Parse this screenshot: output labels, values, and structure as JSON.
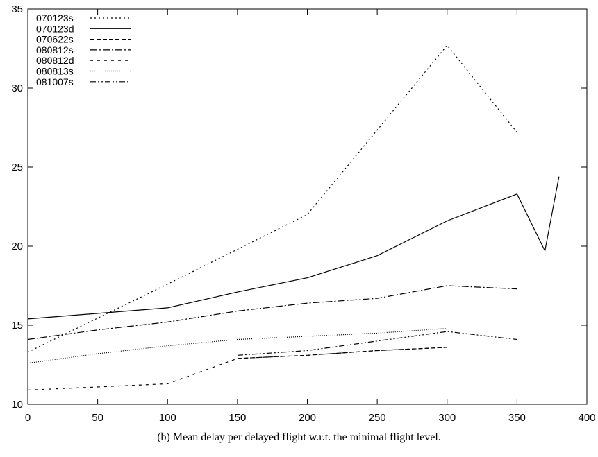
{
  "chart_data": {
    "type": "line",
    "title": "",
    "xlabel": "",
    "ylabel": "",
    "xlim": [
      0,
      400
    ],
    "ylim": [
      10,
      35
    ],
    "xticks": [
      "0",
      "50",
      "100",
      "150",
      "200",
      "250",
      "300",
      "350",
      "400"
    ],
    "yticks": [
      "10",
      "15",
      "20",
      "25",
      "30",
      "35"
    ],
    "grid": false,
    "legend_position": "top-left",
    "series": [
      {
        "name": "070123s",
        "dash": "dotted",
        "x": [
          0,
          100,
          200,
          300,
          350
        ],
        "y": [
          13.3,
          17.6,
          22.0,
          32.7,
          27.2
        ]
      },
      {
        "name": "070123d",
        "dash": "solid",
        "x": [
          0,
          100,
          150,
          200,
          250,
          300,
          350,
          370,
          380
        ],
        "y": [
          15.4,
          16.1,
          17.1,
          18.0,
          19.4,
          21.6,
          23.3,
          19.7,
          24.4
        ]
      },
      {
        "name": "070622s",
        "dash": "dashed",
        "x": [
          150,
          200,
          250,
          300
        ],
        "y": [
          12.9,
          13.1,
          13.4,
          13.6
        ]
      },
      {
        "name": "080812s",
        "dash": "dash-dot",
        "x": [
          0,
          50,
          100,
          150,
          200,
          250,
          300,
          350
        ],
        "y": [
          14.1,
          14.7,
          15.2,
          15.9,
          16.4,
          16.7,
          17.5,
          17.3
        ]
      },
      {
        "name": "080812d",
        "dash": "short-dash",
        "x": [
          0,
          100,
          150,
          200,
          250,
          300
        ],
        "y": [
          10.9,
          11.3,
          12.9,
          13.1,
          13.4,
          13.6
        ]
      },
      {
        "name": "080813s",
        "dash": "fine-dotted",
        "x": [
          0,
          50,
          100,
          150,
          200,
          250,
          300
        ],
        "y": [
          12.6,
          13.2,
          13.7,
          14.1,
          14.3,
          14.5,
          14.8
        ]
      },
      {
        "name": "081007s",
        "dash": "dash-dot-dot",
        "x": [
          150,
          200,
          250,
          300,
          350
        ],
        "y": [
          13.1,
          13.4,
          14.0,
          14.6,
          14.1
        ]
      }
    ]
  },
  "caption": "(b)  Mean delay per delayed flight w.r.t. the minimal flight level."
}
